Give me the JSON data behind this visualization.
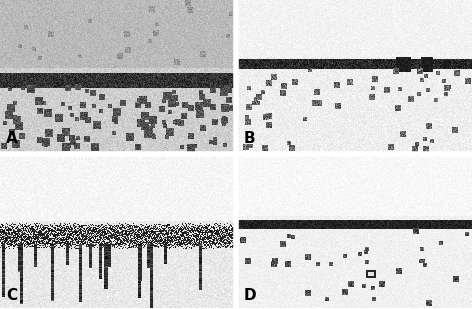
{
  "figure_width": 4.72,
  "figure_height": 3.09,
  "dpi": 100,
  "labels": [
    "A",
    "B",
    "C",
    "D"
  ],
  "label_fontsize": 11,
  "label_color": "black",
  "hgap": 4,
  "vgap": 4
}
